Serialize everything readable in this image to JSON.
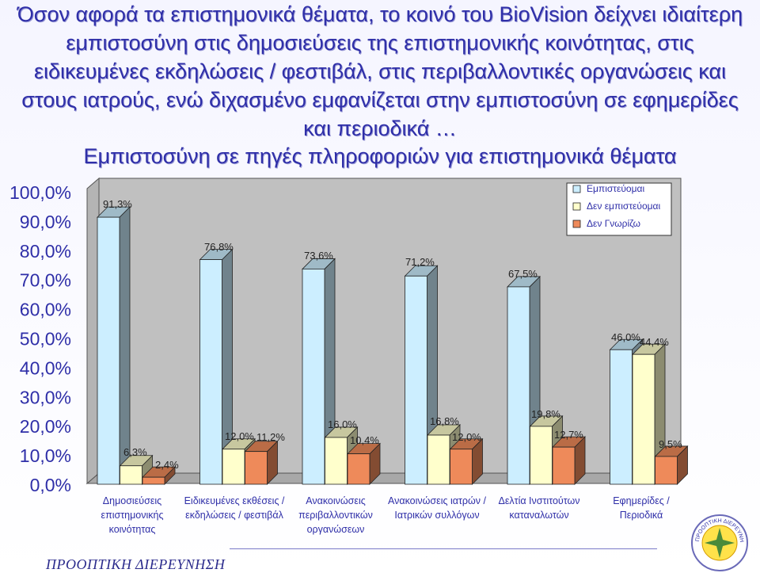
{
  "headline": "Όσον αφορά τα επιστημονικά θέματα, το κοινό του BioVision δείχνει ιδιαίτερη εμπιστοσύνη στις δημοσιεύσεις της επιστημονικής κοινότητας, στις ειδικευμένες εκδηλώσεις / φεστιβάλ, στις περιβαλλοντικές οργανώσεις και στους ιατρούς, ενώ διχασμένο εμφανίζεται στην εμπιστοσύνη σε εφημερίδες και περιοδικά …",
  "footer": "ΠΡΟΟΠΤΙΚΗ ΔΙΕΡΕΥΝΗΣΗ",
  "logo_text": "ΠΡΟΟΠΤΙΚΗ ΔΙΕΡΕΥΝΗΣΗ",
  "colors": {
    "text": "#2F2FA8",
    "series1": "#CCEEFF",
    "series2": "#FFFFCC",
    "series3": "#EE8A5A",
    "plot_bg": "#C0C0C0",
    "floor": "#A8A8A8"
  },
  "chart_data": {
    "type": "bar",
    "title": "Εμπιστοσύνη σε πηγές πληροφοριών για επιστημονικά θέματα",
    "xlabel": "",
    "ylabel": "",
    "ylim": [
      0,
      100
    ],
    "yticks": [
      "0,0%",
      "10,0%",
      "20,0%",
      "30,0%",
      "40,0%",
      "50,0%",
      "60,0%",
      "70,0%",
      "80,0%",
      "90,0%",
      "100,0%"
    ],
    "grid": false,
    "legend_position": "top-right",
    "categories": [
      [
        "Δημοσιεύσεις",
        "επιστημονικής",
        "κοινότητας"
      ],
      [
        "Ειδικευμένες εκθέσεις /",
        "εκδηλώσεις / φεστιβάλ"
      ],
      [
        "Ανακοινώσεις",
        "περιβαλλοντικών",
        "οργανώσεων"
      ],
      [
        "Ανακοινώσεις ιατρών /",
        "Ιατρικών συλλόγων"
      ],
      [
        "Δελτία Ινστιτούτων",
        "καταναλωτών"
      ],
      [
        "Εφημερίδες /",
        "Περιοδικά"
      ]
    ],
    "series": [
      {
        "name": "Εμπιστεύομαι",
        "values": [
          91.3,
          76.8,
          73.6,
          71.2,
          67.5,
          46.0
        ],
        "labels": [
          "91,3%",
          "76,8%",
          "73,6%",
          "71,2%",
          "67,5%",
          "46,0%"
        ]
      },
      {
        "name": "Δεν εμπιστεύομαι",
        "values": [
          6.3,
          12.0,
          16.0,
          16.8,
          19.8,
          44.4
        ],
        "labels": [
          "6,3%",
          "12,0%",
          "16,0%",
          "16,8%",
          "19,8%",
          "44,4%"
        ]
      },
      {
        "name": "Δεν Γνωρίζω",
        "values": [
          2.4,
          11.2,
          10.4,
          12.0,
          12.7,
          9.5
        ],
        "labels": [
          "2,4%",
          "11,2%",
          "10,4%",
          "12,0%",
          "12,7%",
          "9,5%"
        ]
      }
    ]
  }
}
